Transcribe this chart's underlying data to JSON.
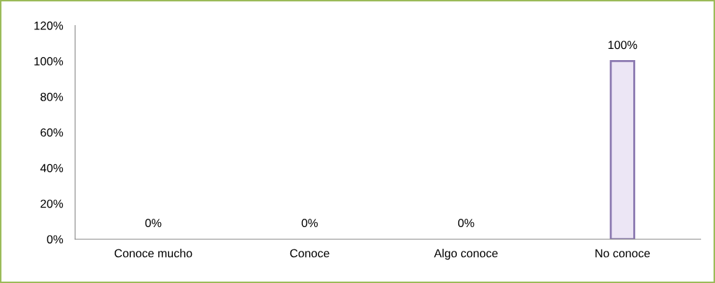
{
  "chart_data": {
    "type": "bar",
    "categories": [
      "Conoce mucho",
      "Conoce",
      "Algo conoce",
      "No conoce"
    ],
    "values": [
      0,
      0,
      0,
      100
    ],
    "color": "#ece6f5",
    "value_labels": [
      "0%",
      "0%",
      "0%",
      "100%"
    ],
    "ylim": [
      0,
      120
    ],
    "yticks": [
      {
        "value": 0,
        "label": "0%"
      },
      {
        "value": 20,
        "label": "20%"
      },
      {
        "value": 40,
        "label": "40%"
      },
      {
        "value": 60,
        "label": "60%"
      },
      {
        "value": 80,
        "label": "80%"
      },
      {
        "value": 100,
        "label": "100%"
      },
      {
        "value": 120,
        "label": "120%"
      }
    ],
    "grid": false,
    "legend": false
  }
}
